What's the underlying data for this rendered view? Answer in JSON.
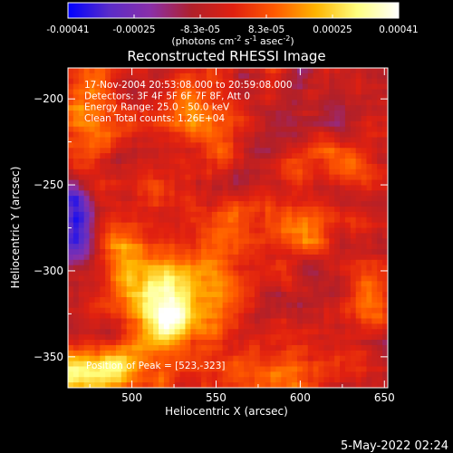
{
  "chart_data": {
    "type": "heatmap",
    "title": "Reconstructed RHESSI Image",
    "xlabel": "Heliocentric X (arcsec)",
    "ylabel": "Heliocentric Y (arcsec)",
    "xlim": [
      462,
      652
    ],
    "ylim": [
      -368,
      -182
    ],
    "x_ticks": [
      500,
      550,
      600,
      650
    ],
    "y_ticks": [
      -200,
      -250,
      -300,
      -350
    ],
    "colorbar": {
      "range": [
        -0.00041,
        0.00041
      ],
      "ticks": [
        "-0.00041",
        "-0.00025",
        "-8.3e-05",
        "8.3e-05",
        "0.00025",
        "0.00041"
      ],
      "unit_label": "(photons cm-2 s-1 asec-2)",
      "colormap": [
        "#0000ff",
        "#5a2cc8",
        "#8a2fa8",
        "#b0202a",
        "#e02010",
        "#ff5a00",
        "#ffb400",
        "#ffff80",
        "#ffffff"
      ]
    },
    "annotations": [
      "17-Nov-2004 20:53:08.000 to 20:59:08.000",
      "Detectors: 3F 4F 5F 6F 7F 8F, Att 0",
      "Energy Range: 25.0 - 50.0 keV",
      "Clean     Total counts: 1.26E+04"
    ],
    "peak_label": "Position of Peak = [523,-323]",
    "peak": {
      "x": 523,
      "y": -323
    },
    "hot_regions": [
      {
        "x": 520,
        "y": -322,
        "sx": 16,
        "sy": 18,
        "level": 0.00045
      },
      {
        "x": 475,
        "y": -358,
        "sx": 22,
        "sy": 10,
        "level": 0.00038
      },
      {
        "x": 540,
        "y": -212,
        "sx": 16,
        "sy": 12,
        "level": 0.00024
      },
      {
        "x": 495,
        "y": -290,
        "sx": 12,
        "sy": 14,
        "level": 0.00022
      },
      {
        "x": 472,
        "y": -210,
        "sx": 12,
        "sy": 26,
        "level": 0.0002
      },
      {
        "x": 600,
        "y": -278,
        "sx": 16,
        "sy": 10,
        "level": 0.00016
      },
      {
        "x": 588,
        "y": -360,
        "sx": 22,
        "sy": 10,
        "level": 0.00017
      },
      {
        "x": 550,
        "y": -300,
        "sx": 12,
        "sy": 28,
        "level": 0.00016
      },
      {
        "x": 625,
        "y": -235,
        "sx": 14,
        "sy": 10,
        "level": 0.00013
      },
      {
        "x": 640,
        "y": -320,
        "sx": 10,
        "sy": 14,
        "level": 0.00013
      },
      {
        "x": 520,
        "y": -255,
        "sx": 10,
        "sy": 10,
        "level": 0.0001
      },
      {
        "x": 610,
        "y": -220,
        "sx": 10,
        "sy": 10,
        "level": 9e-05
      }
    ],
    "cold_regions": [
      {
        "x": 466,
        "y": -270,
        "sx": 8,
        "sy": 16,
        "level": -0.00035
      },
      {
        "x": 600,
        "y": -210,
        "sx": 22,
        "sy": 14,
        "level": -0.0001
      }
    ]
  },
  "timestamp": "5-May-2022 02:24"
}
